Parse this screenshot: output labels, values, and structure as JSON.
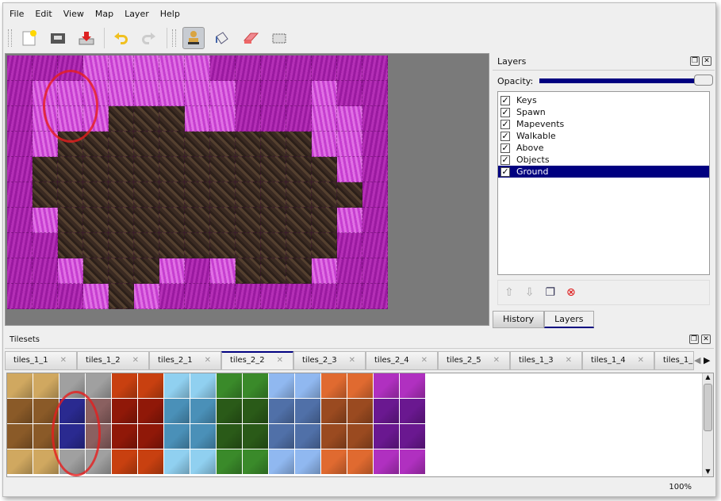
{
  "menu": [
    "File",
    "Edit",
    "View",
    "Map",
    "Layer",
    "Help"
  ],
  "toolbar": [
    "new-icon",
    "open-icon",
    "save-icon",
    "undo-icon",
    "redo-icon",
    "stamp-brush-icon",
    "bucket-fill-icon",
    "eraser-icon",
    "rect-select-icon"
  ],
  "layers_dock": {
    "title": "Layers",
    "opacity_label": "Opacity:",
    "opacity": 1.0,
    "layers": [
      {
        "name": "Keys",
        "visible": true
      },
      {
        "name": "Spawn",
        "visible": true
      },
      {
        "name": "Mapevents",
        "visible": true
      },
      {
        "name": "Walkable",
        "visible": true
      },
      {
        "name": "Above",
        "visible": true
      },
      {
        "name": "Objects",
        "visible": true
      },
      {
        "name": "Ground",
        "visible": true,
        "selected": true
      }
    ],
    "tabs": [
      "History",
      "Layers"
    ],
    "active_tab": "Layers"
  },
  "tilesets_dock": {
    "title": "Tilesets",
    "tabs": [
      "tiles_1_1",
      "tiles_1_2",
      "tiles_2_1",
      "tiles_2_2",
      "tiles_2_3",
      "tiles_2_4",
      "tiles_2_5",
      "tiles_1_3",
      "tiles_1_4",
      "tiles_1_"
    ],
    "active_tab": "tiles_2_2"
  },
  "status": {
    "zoom": "100%"
  },
  "colors": {
    "selection": "#000080",
    "magenta": "#a626ab",
    "dirt": "#3a2a22"
  }
}
